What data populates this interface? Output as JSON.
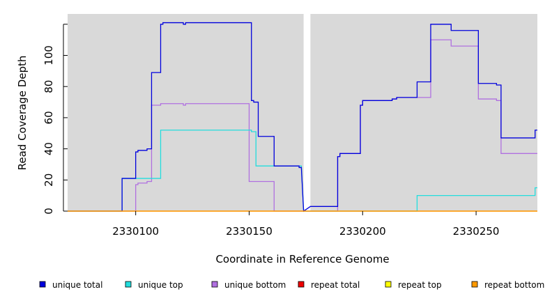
{
  "chart_data": {
    "type": "line",
    "xlabel": "Coordinate in Reference Genome",
    "ylabel": "Read Coverage Depth",
    "xlim": [
      2330070,
      2330277
    ],
    "ylim": [
      -1,
      126
    ],
    "gap": [
      2330174,
      2330177
    ],
    "x_ticks": [
      2330100,
      2330150,
      2330200,
      2330250
    ],
    "x_tick_labels": [
      "2330100",
      "2330150",
      "2330200",
      "2330250"
    ],
    "y_ticks": [
      0,
      20,
      40,
      60,
      80,
      100
    ],
    "y_tick_labels": [
      "0",
      "20",
      "40",
      "60",
      "80",
      "100"
    ],
    "background": "#d9d9d9",
    "step": true,
    "legend_position": "bottom",
    "series": [
      {
        "name": "unique total",
        "color": "#0000dd",
        "points": [
          [
            2330070,
            0
          ],
          [
            2330094,
            0
          ],
          [
            2330094,
            21
          ],
          [
            2330100,
            21
          ],
          [
            2330100,
            38
          ],
          [
            2330101,
            38
          ],
          [
            2330101,
            39
          ],
          [
            2330103,
            39
          ],
          [
            2330103,
            39
          ],
          [
            2330105,
            39
          ],
          [
            2330105,
            40
          ],
          [
            2330107,
            40
          ],
          [
            2330107,
            89
          ],
          [
            2330111,
            89
          ],
          [
            2330111,
            120
          ],
          [
            2330112,
            120
          ],
          [
            2330112,
            121
          ],
          [
            2330121,
            121
          ],
          [
            2330121,
            120
          ],
          [
            2330122,
            120
          ],
          [
            2330122,
            121
          ],
          [
            2330151,
            121
          ],
          [
            2330151,
            71
          ],
          [
            2330152,
            71
          ],
          [
            2330152,
            70
          ],
          [
            2330154,
            70
          ],
          [
            2330154,
            48
          ],
          [
            2330161,
            48
          ],
          [
            2330161,
            29
          ],
          [
            2330172,
            29
          ],
          [
            2330172,
            28
          ],
          [
            2330173,
            28
          ],
          [
            2330174,
            0
          ],
          [
            2330177,
            3
          ],
          [
            2330189,
            3
          ],
          [
            2330189,
            35
          ],
          [
            2330190,
            35
          ],
          [
            2330190,
            37
          ],
          [
            2330199,
            37
          ],
          [
            2330199,
            68
          ],
          [
            2330200,
            68
          ],
          [
            2330200,
            71
          ],
          [
            2330213,
            71
          ],
          [
            2330213,
            72
          ],
          [
            2330215,
            72
          ],
          [
            2330215,
            73
          ],
          [
            2330224,
            73
          ],
          [
            2330224,
            83
          ],
          [
            2330230,
            83
          ],
          [
            2330230,
            120
          ],
          [
            2330239,
            120
          ],
          [
            2330239,
            116
          ],
          [
            2330251,
            116
          ],
          [
            2330251,
            82
          ],
          [
            2330259,
            82
          ],
          [
            2330259,
            81
          ],
          [
            2330261,
            81
          ],
          [
            2330261,
            47
          ],
          [
            2330276,
            47
          ],
          [
            2330276,
            52
          ],
          [
            2330277,
            52
          ]
        ]
      },
      {
        "name": "unique top",
        "color": "#22dddd",
        "points": [
          [
            2330070,
            0
          ],
          [
            2330094,
            0
          ],
          [
            2330094,
            21
          ],
          [
            2330111,
            21
          ],
          [
            2330111,
            52
          ],
          [
            2330151,
            52
          ],
          [
            2330151,
            51
          ],
          [
            2330153,
            51
          ],
          [
            2330153,
            29
          ],
          [
            2330173,
            29
          ],
          [
            2330174,
            0
          ],
          [
            2330177,
            0
          ],
          [
            2330224,
            0
          ],
          [
            2330224,
            10
          ],
          [
            2330276,
            10
          ],
          [
            2330276,
            15
          ],
          [
            2330277,
            15
          ]
        ]
      },
      {
        "name": "unique bottom",
        "color": "#b070e0",
        "points": [
          [
            2330070,
            0
          ],
          [
            2330100,
            0
          ],
          [
            2330100,
            17
          ],
          [
            2330101,
            17
          ],
          [
            2330101,
            18
          ],
          [
            2330105,
            18
          ],
          [
            2330105,
            19
          ],
          [
            2330107,
            19
          ],
          [
            2330107,
            68
          ],
          [
            2330111,
            68
          ],
          [
            2330111,
            69
          ],
          [
            2330121,
            69
          ],
          [
            2330121,
            68
          ],
          [
            2330122,
            68
          ],
          [
            2330122,
            69
          ],
          [
            2330150,
            69
          ],
          [
            2330150,
            19
          ],
          [
            2330161,
            19
          ],
          [
            2330161,
            0
          ],
          [
            2330174,
            0
          ],
          [
            2330177,
            0
          ],
          [
            2330189,
            0
          ],
          [
            2330189,
            35
          ],
          [
            2330190,
            35
          ],
          [
            2330190,
            37
          ],
          [
            2330199,
            37
          ],
          [
            2330199,
            68
          ],
          [
            2330200,
            68
          ],
          [
            2330200,
            71
          ],
          [
            2330213,
            71
          ],
          [
            2330213,
            72
          ],
          [
            2330215,
            72
          ],
          [
            2330215,
            73
          ],
          [
            2330230,
            73
          ],
          [
            2330230,
            110
          ],
          [
            2330239,
            110
          ],
          [
            2330239,
            106
          ],
          [
            2330251,
            106
          ],
          [
            2330251,
            72
          ],
          [
            2330259,
            72
          ],
          [
            2330259,
            71
          ],
          [
            2330261,
            71
          ],
          [
            2330261,
            37
          ],
          [
            2330277,
            37
          ]
        ]
      },
      {
        "name": "repeat total",
        "color": "#ee0000",
        "points": [
          [
            2330070,
            0
          ],
          [
            2330174,
            0
          ],
          [
            2330177,
            0
          ],
          [
            2330277,
            0
          ]
        ]
      },
      {
        "name": "repeat top",
        "color": "#ffff00",
        "points": [
          [
            2330070,
            0
          ],
          [
            2330174,
            0
          ],
          [
            2330177,
            0
          ],
          [
            2330277,
            0
          ]
        ]
      },
      {
        "name": "repeat bottom",
        "color": "#ff9900",
        "points": [
          [
            2330070,
            0
          ],
          [
            2330174,
            0
          ],
          [
            2330177,
            0
          ],
          [
            2330277,
            0
          ]
        ]
      }
    ]
  }
}
